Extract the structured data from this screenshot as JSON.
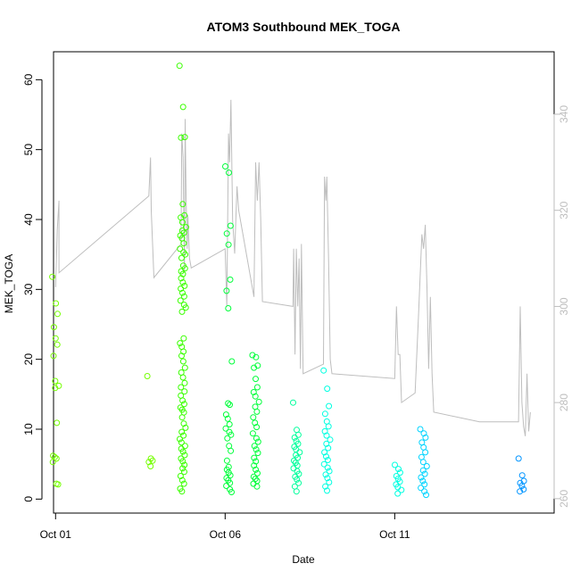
{
  "chart_data": {
    "type": "scatter",
    "title": "ATOM3 Southbound MEK_TOGA",
    "xlabel": "Date",
    "ylabel": "MEK_TOGA",
    "x_ticks": [
      "Oct 01",
      "Oct 06",
      "Oct 11"
    ],
    "x_tick_days": [
      1,
      6,
      11
    ],
    "xlim": [
      0.94,
      15.7
    ],
    "ylim": [
      -2,
      64
    ],
    "y_ticks": [
      0,
      10,
      20,
      30,
      40,
      50,
      60
    ],
    "right_axis": {
      "ylim": [
        257,
        353
      ],
      "ticks": [
        260,
        280,
        300,
        320,
        340
      ],
      "color": "#bebebe"
    },
    "grid": false,
    "legend": "none",
    "color_by": "day",
    "point_colors": [
      "#74ff00",
      "#3aff00",
      "#00ff3a",
      "#00ff9c",
      "#00ffe1",
      "#00d4ff",
      "#0094ff"
    ],
    "series": [
      {
        "day": 1.0,
        "values": [
          31.8,
          28.0,
          26.5,
          24.6,
          23.0,
          22.1,
          20.5,
          16.9,
          16.2,
          15.9,
          10.9,
          6.2,
          6.0,
          5.8,
          5.3,
          2.2,
          2.1
        ]
      },
      {
        "day": 3.8,
        "values": [
          17.6,
          5.8,
          5.5,
          5.3,
          4.7
        ]
      },
      {
        "day": 4.75,
        "values": [
          62.0,
          56.1,
          51.8,
          51.7,
          42.2,
          40.6,
          40.3,
          39.6,
          38.9,
          38.4,
          38.1,
          37.7,
          37.3,
          36.6,
          35.8,
          35.3,
          35.0,
          34.5,
          33.4,
          33.0,
          32.6,
          32.2,
          31.6,
          31.0,
          30.5,
          30.1,
          29.5,
          29.0,
          28.4,
          27.8,
          27.4,
          26.8,
          23.0,
          22.3,
          21.8,
          21.1,
          20.5,
          19.7,
          18.8,
          18.1,
          17.4,
          16.6,
          16.0,
          15.4,
          14.8,
          14.1,
          13.6,
          13.1,
          12.8,
          12.4,
          11.7,
          10.8,
          10.2,
          9.6,
          9.1,
          8.6,
          8.1,
          7.6,
          7.2,
          6.8,
          6.3,
          5.8,
          5.4,
          4.9,
          4.4,
          3.9,
          3.3,
          2.7,
          2.2,
          1.5,
          1.1
        ]
      },
      {
        "day": 6.1,
        "values": [
          47.6,
          46.7,
          39.1,
          38.0,
          36.4,
          31.4,
          29.8,
          27.3,
          19.7,
          13.7,
          13.5,
          12.1,
          11.5,
          10.7,
          10.1,
          9.6,
          9.2,
          8.7,
          7.6,
          6.9,
          5.5,
          4.6,
          4.2,
          3.8,
          3.4,
          3.0,
          2.7,
          2.3,
          1.9,
          1.4,
          1.0
        ]
      },
      {
        "day": 6.9,
        "values": [
          20.6,
          20.3,
          19.1,
          18.8,
          17.2,
          16.0,
          15.3,
          14.7,
          13.9,
          13.2,
          12.5,
          11.7,
          10.9,
          10.3,
          9.4,
          8.7,
          8.2,
          7.6,
          7.1,
          6.6,
          5.9,
          5.4,
          4.8,
          4.2,
          3.7,
          3.2,
          2.9,
          2.6,
          2.2,
          1.8
        ]
      },
      {
        "day": 8.1,
        "values": [
          13.8,
          9.9,
          9.2,
          8.8,
          8.3,
          7.9,
          7.5,
          7.1,
          6.7,
          6.3,
          5.9,
          5.5,
          5.2,
          4.8,
          4.4,
          4.0,
          3.6,
          3.2,
          2.8,
          2.3,
          1.8,
          1.1
        ]
      },
      {
        "day": 9.0,
        "values": [
          18.4,
          15.8,
          13.3,
          12.2,
          11.1,
          10.4,
          9.7,
          9.1,
          8.5,
          7.9,
          7.3,
          6.7,
          6.1,
          5.6,
          5.0,
          4.5,
          4.0,
          3.5,
          3.0,
          2.4,
          1.8,
          1.2
        ]
      },
      {
        "day": 11.1,
        "values": [
          4.9,
          4.3,
          3.8,
          3.3,
          2.9,
          2.5,
          2.1,
          1.7,
          1.3,
          0.8
        ]
      },
      {
        "day": 11.85,
        "values": [
          10.0,
          9.4,
          8.8,
          8.1,
          7.4,
          6.7,
          6.0,
          5.3,
          4.7,
          4.1,
          3.6,
          3.1,
          2.6,
          2.1,
          1.6,
          1.1,
          0.6
        ]
      },
      {
        "day": 14.75,
        "values": [
          5.8,
          3.4,
          2.6,
          2.3,
          1.9,
          1.4,
          1.1
        ]
      }
    ],
    "line_series": {
      "axis": "right",
      "color": "#bebebe",
      "points": [
        [
          1.0,
          304
        ],
        [
          1.05,
          316
        ],
        [
          1.1,
          322
        ],
        [
          1.1,
          307
        ],
        [
          3.75,
          323
        ],
        [
          3.8,
          331
        ],
        [
          3.82,
          320
        ],
        [
          3.9,
          306
        ],
        [
          4.7,
          313
        ],
        [
          4.72,
          336
        ],
        [
          4.76,
          331
        ],
        [
          4.8,
          307
        ],
        [
          4.82,
          339
        ],
        [
          4.85,
          322
        ],
        [
          4.88,
          312
        ],
        [
          4.9,
          319
        ],
        [
          4.95,
          310
        ],
        [
          5.0,
          308
        ],
        [
          6.0,
          312
        ],
        [
          6.05,
          300
        ],
        [
          6.1,
          336
        ],
        [
          6.13,
          330
        ],
        [
          6.17,
          343
        ],
        [
          6.22,
          318
        ],
        [
          6.28,
          311
        ],
        [
          6.35,
          325
        ],
        [
          6.4,
          320
        ],
        [
          6.85,
          302
        ],
        [
          6.9,
          330
        ],
        [
          6.95,
          322
        ],
        [
          7.0,
          330
        ],
        [
          7.05,
          318
        ],
        [
          7.1,
          301
        ],
        [
          8.0,
          300
        ],
        [
          8.02,
          312
        ],
        [
          8.06,
          290
        ],
        [
          8.1,
          312
        ],
        [
          8.14,
          300
        ],
        [
          8.18,
          310
        ],
        [
          8.22,
          287
        ],
        [
          8.25,
          313
        ],
        [
          8.3,
          286
        ],
        [
          8.9,
          288
        ],
        [
          8.93,
          327
        ],
        [
          8.97,
          322
        ],
        [
          9.0,
          327
        ],
        [
          9.05,
          310
        ],
        [
          9.1,
          289
        ],
        [
          9.15,
          286
        ],
        [
          11.0,
          285
        ],
        [
          11.05,
          300
        ],
        [
          11.1,
          290
        ],
        [
          11.15,
          290
        ],
        [
          11.2,
          280
        ],
        [
          11.6,
          282
        ],
        [
          11.7,
          298
        ],
        [
          11.8,
          315
        ],
        [
          11.85,
          312
        ],
        [
          11.9,
          317
        ],
        [
          11.95,
          304
        ],
        [
          12.0,
          287
        ],
        [
          12.05,
          302
        ],
        [
          12.1,
          286
        ],
        [
          12.15,
          278
        ],
        [
          13.5,
          276
        ],
        [
          13.6,
          276
        ],
        [
          14.65,
          276
        ],
        [
          14.7,
          300
        ],
        [
          14.75,
          280
        ],
        [
          14.8,
          275
        ],
        [
          14.85,
          273
        ],
        [
          14.9,
          286
        ],
        [
          14.95,
          274
        ],
        [
          15.0,
          278
        ]
      ]
    }
  }
}
